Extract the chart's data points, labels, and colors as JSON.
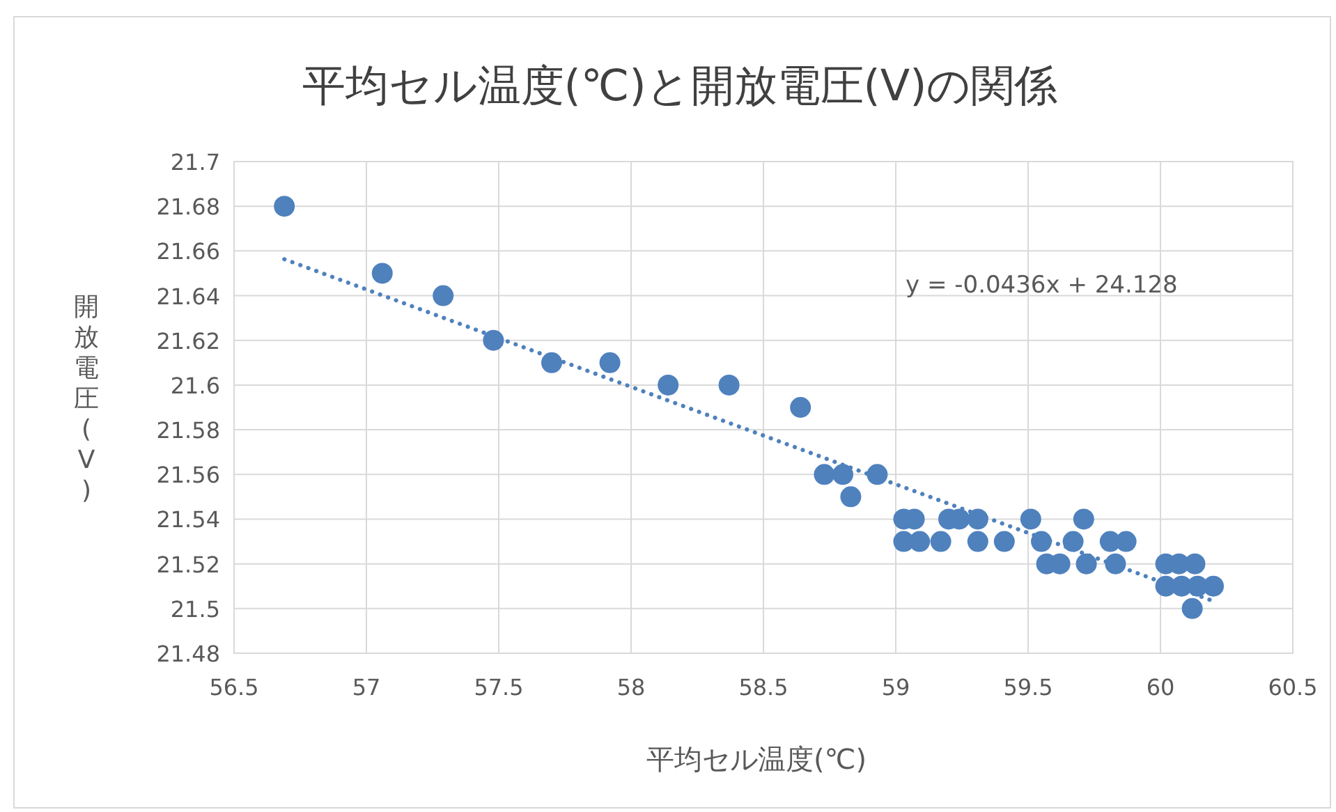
{
  "chart_data": {
    "type": "scatter",
    "title": "平均セル温度(℃)と開放電圧(V)の関係",
    "xlabel": "平均セル温度(℃)",
    "ylabel": "開放電圧(V)",
    "xlim": [
      56.5,
      60.5
    ],
    "xticks": [
      56.5,
      57,
      57.5,
      58,
      58.5,
      59,
      59.5,
      60,
      60.5
    ],
    "ylim": [
      21.48,
      21.7
    ],
    "yticks": [
      21.48,
      21.5,
      21.52,
      21.54,
      21.56,
      21.58,
      21.6,
      21.62,
      21.64,
      21.66,
      21.68,
      21.7
    ],
    "grid": true,
    "marker": "circle",
    "annotations": [
      "y = -0.0436x + 24.128"
    ],
    "series": [
      {
        "color": "#4f81bd",
        "x": [
          56.69,
          57.06,
          57.29,
          57.48,
          57.7,
          57.92,
          58.14,
          58.37,
          58.64,
          58.73,
          58.8,
          58.83,
          58.93,
          59.03,
          59.07,
          59.03,
          59.09,
          59.17,
          59.2,
          59.24,
          59.31,
          59.31,
          59.41,
          59.51,
          59.55,
          59.57,
          59.62,
          59.67,
          59.71,
          59.72,
          59.81,
          59.83,
          59.87,
          60.02,
          60.07,
          60.13,
          60.02,
          60.08,
          60.14,
          60.2,
          60.12
        ],
        "values": [
          21.68,
          21.65,
          21.64,
          21.62,
          21.61,
          21.61,
          21.6,
          21.6,
          21.59,
          21.56,
          21.56,
          21.55,
          21.56,
          21.54,
          21.54,
          21.53,
          21.53,
          21.53,
          21.54,
          21.54,
          21.54,
          21.53,
          21.53,
          21.54,
          21.53,
          21.52,
          21.52,
          21.53,
          21.54,
          21.52,
          21.53,
          21.52,
          21.53,
          21.52,
          21.52,
          21.52,
          21.51,
          21.51,
          21.51,
          21.51,
          21.5
        ]
      },
      {
        "type": "line",
        "color": "#4f81bd",
        "line_style": "dotted",
        "marker": "none",
        "x": [
          56.69,
          60.2
        ],
        "values": [
          21.6563,
          21.5033
        ]
      }
    ]
  }
}
